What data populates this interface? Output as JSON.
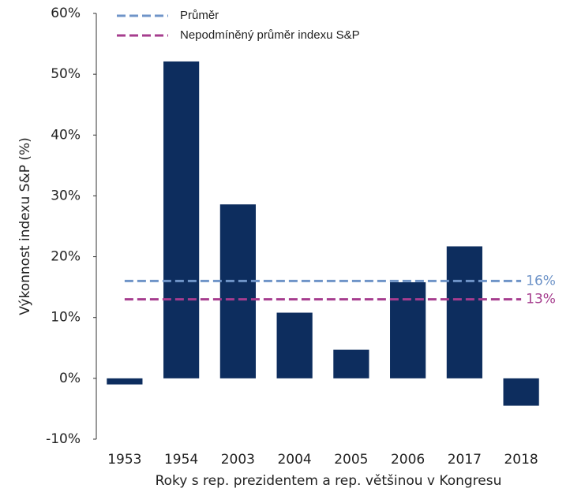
{
  "chart_data": {
    "type": "bar",
    "x_label": "Roky s rep. prezidentem a rep. většinou v Kongresu",
    "y_label": "Výkonnost indexu S&P (%)",
    "categories": [
      "1953",
      "1954",
      "2003",
      "2004",
      "2005",
      "2006",
      "2017",
      "2018"
    ],
    "values": [
      -1,
      52.1,
      28.6,
      10.8,
      4.7,
      15.8,
      21.7,
      -4.5
    ],
    "color": "#0d2d5e",
    "ylim": [
      -10,
      60
    ],
    "yticks": [
      {
        "value": -10,
        "label": "-10%"
      },
      {
        "value": 0,
        "label": "0%"
      },
      {
        "value": 10,
        "label": "10%"
      },
      {
        "value": 20,
        "label": "20%"
      },
      {
        "value": 30,
        "label": "30%"
      },
      {
        "value": 40,
        "label": "40%"
      },
      {
        "value": 50,
        "label": "50%"
      },
      {
        "value": 60,
        "label": "60%"
      }
    ],
    "reference_lines": [
      {
        "name": "Průměr",
        "value": 16,
        "value_label": "16%",
        "color": "#6f94c8"
      },
      {
        "name": "Nepodmíněný průměr indexu S&P",
        "value": 13,
        "value_label": "13%",
        "color": "#a63d8e"
      }
    ]
  }
}
